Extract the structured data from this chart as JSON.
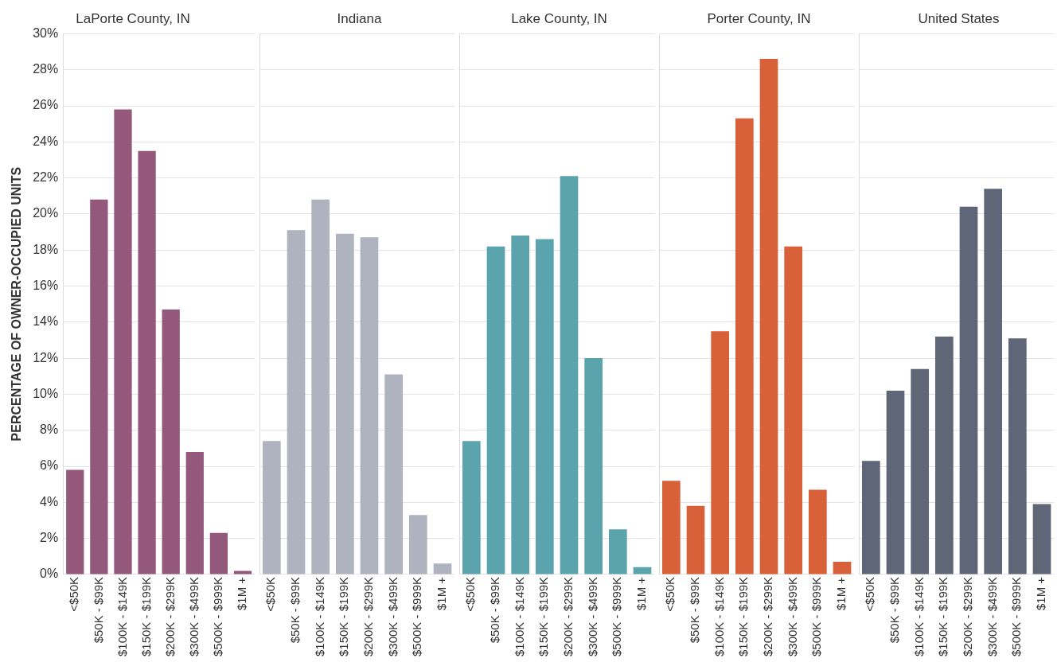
{
  "chart_data": [
    {
      "type": "bar",
      "title": "LaPorte County, IN",
      "ylabel": "PERCENTAGE OF OWNER-OCCUPIED UNITS",
      "categories": [
        "<$50K",
        "$50K - $99K",
        "$100K - $149K",
        "$150K - $199K",
        "$200K - $299K",
        "$300K - $499K",
        "$500K - $999K",
        "$1M +"
      ],
      "values": [
        5.8,
        20.8,
        25.8,
        23.5,
        14.7,
        6.8,
        2.3,
        0.2
      ],
      "color": "#93587c",
      "ylim": [
        0,
        30
      ],
      "yticks": [
        {
          "value": 0,
          "label": "0%"
        },
        {
          "value": 2,
          "label": "2%"
        },
        {
          "value": 4,
          "label": "4%"
        },
        {
          "value": 6,
          "label": "6%"
        },
        {
          "value": 8,
          "label": "8%"
        },
        {
          "value": 10,
          "label": "10%"
        },
        {
          "value": 12,
          "label": "12%"
        },
        {
          "value": 14,
          "label": "14%"
        },
        {
          "value": 16,
          "label": "16%"
        },
        {
          "value": 18,
          "label": "18%"
        },
        {
          "value": 20,
          "label": "20%"
        },
        {
          "value": 22,
          "label": "22%"
        },
        {
          "value": 24,
          "label": "24%"
        },
        {
          "value": 26,
          "label": "26%"
        },
        {
          "value": 28,
          "label": "28%"
        },
        {
          "value": 30,
          "label": "30%"
        }
      ],
      "grid": "y"
    },
    {
      "type": "bar",
      "title": "Indiana",
      "categories": [
        "<$50K",
        "$50K - $99K",
        "$100K - $149K",
        "$150K - $199K",
        "$200K - $299K",
        "$300K - $499K",
        "$500K - $999K",
        "$1M +"
      ],
      "values": [
        7.4,
        19.1,
        20.8,
        18.9,
        18.7,
        11.1,
        3.3,
        0.6
      ],
      "color": "#afb3bf",
      "ylim": [
        0,
        30
      ],
      "yticks": [
        0,
        2,
        4,
        6,
        8,
        10,
        12,
        14,
        16,
        18,
        20,
        22,
        24,
        26,
        28,
        30
      ],
      "grid": "y",
      "tick_labels": "x"
    },
    {
      "type": "bar",
      "title": "Lake County, IN",
      "categories": [
        "<$50K",
        "$50K - $99K",
        "$100K - $149K",
        "$150K - $199K",
        "$200K - $299K",
        "$300K - $499K",
        "$500K - $999K",
        "$1M +"
      ],
      "values": [
        7.4,
        18.2,
        18.8,
        18.6,
        22.1,
        12.0,
        2.5,
        0.4
      ],
      "color": "#5ca4ad",
      "ylim": [
        0,
        30
      ],
      "yticks": [
        0,
        2,
        4,
        6,
        8,
        10,
        12,
        14,
        16,
        18,
        20,
        22,
        24,
        26,
        28,
        30
      ],
      "grid": "y",
      "tick_labels": "x"
    },
    {
      "type": "bar",
      "title": "Porter County, IN",
      "categories": [
        "<$50K",
        "$50K - $99K",
        "$100K - $149K",
        "$150K - $199K",
        "$200K - $299K",
        "$300K - $499K",
        "$500K - $999K",
        "$1M +"
      ],
      "values": [
        5.2,
        3.8,
        13.5,
        25.3,
        28.6,
        18.2,
        4.7,
        0.7
      ],
      "color": "#d96139",
      "ylim": [
        0,
        30
      ],
      "yticks": [
        0,
        2,
        4,
        6,
        8,
        10,
        12,
        14,
        16,
        18,
        20,
        22,
        24,
        26,
        28,
        30
      ],
      "grid": "y",
      "tick_labels": "x"
    },
    {
      "type": "bar",
      "title": "United States",
      "categories": [
        "<$50K",
        "$50K - $99K",
        "$100K - $149K",
        "$150K - $199K",
        "$200K - $299K",
        "$300K - $499K",
        "$500K - $999K",
        "$1M +"
      ],
      "values": [
        6.3,
        10.2,
        11.4,
        13.2,
        20.4,
        21.4,
        13.1,
        3.9
      ],
      "color": "#5f6677",
      "ylim": [
        0,
        30
      ],
      "yticks": [
        0,
        2,
        4,
        6,
        8,
        10,
        12,
        14,
        16,
        18,
        20,
        22,
        24,
        26,
        28,
        30
      ],
      "grid": "y",
      "tick_labels": "x"
    }
  ]
}
